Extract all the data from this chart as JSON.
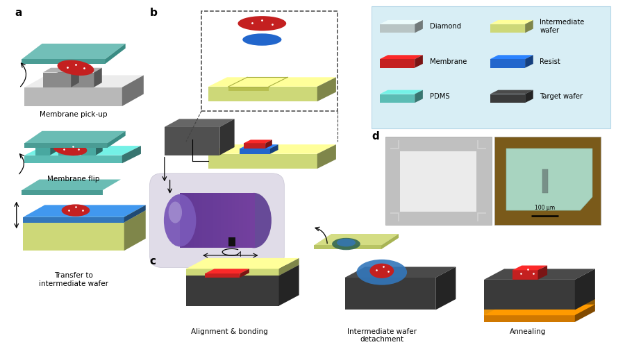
{
  "bg_color": "#ffffff",
  "legend_bg": "#daeef5",
  "label_a": "a",
  "label_b": "b",
  "label_c": "c",
  "label_d": "d",
  "text_membrane_pickup": "Membrane pick-up",
  "text_membrane_flip": "Membrane flip",
  "text_transfer": "Transfer to\nintermediate wafer",
  "text_alignment": "Alignment & bonding",
  "text_detachment": "Intermediate wafer\ndetachment",
  "text_annealing": "Annealing",
  "color_diamond": "#b8c4c4",
  "color_membrane": "#c42020",
  "color_pdms": "#5bbcb4",
  "color_intermediate": "#d4dd84",
  "color_resist": "#2266cc",
  "color_target": "#3a3a3a",
  "color_gray_base": "#a8a8a8",
  "color_orange": "#e8920a",
  "color_purple_dark": "#5a3a90",
  "color_purple_light": "#d8d0e8",
  "color_blue_resist": "#3377bb",
  "font_size_label": 11,
  "font_size_text": 7.5
}
